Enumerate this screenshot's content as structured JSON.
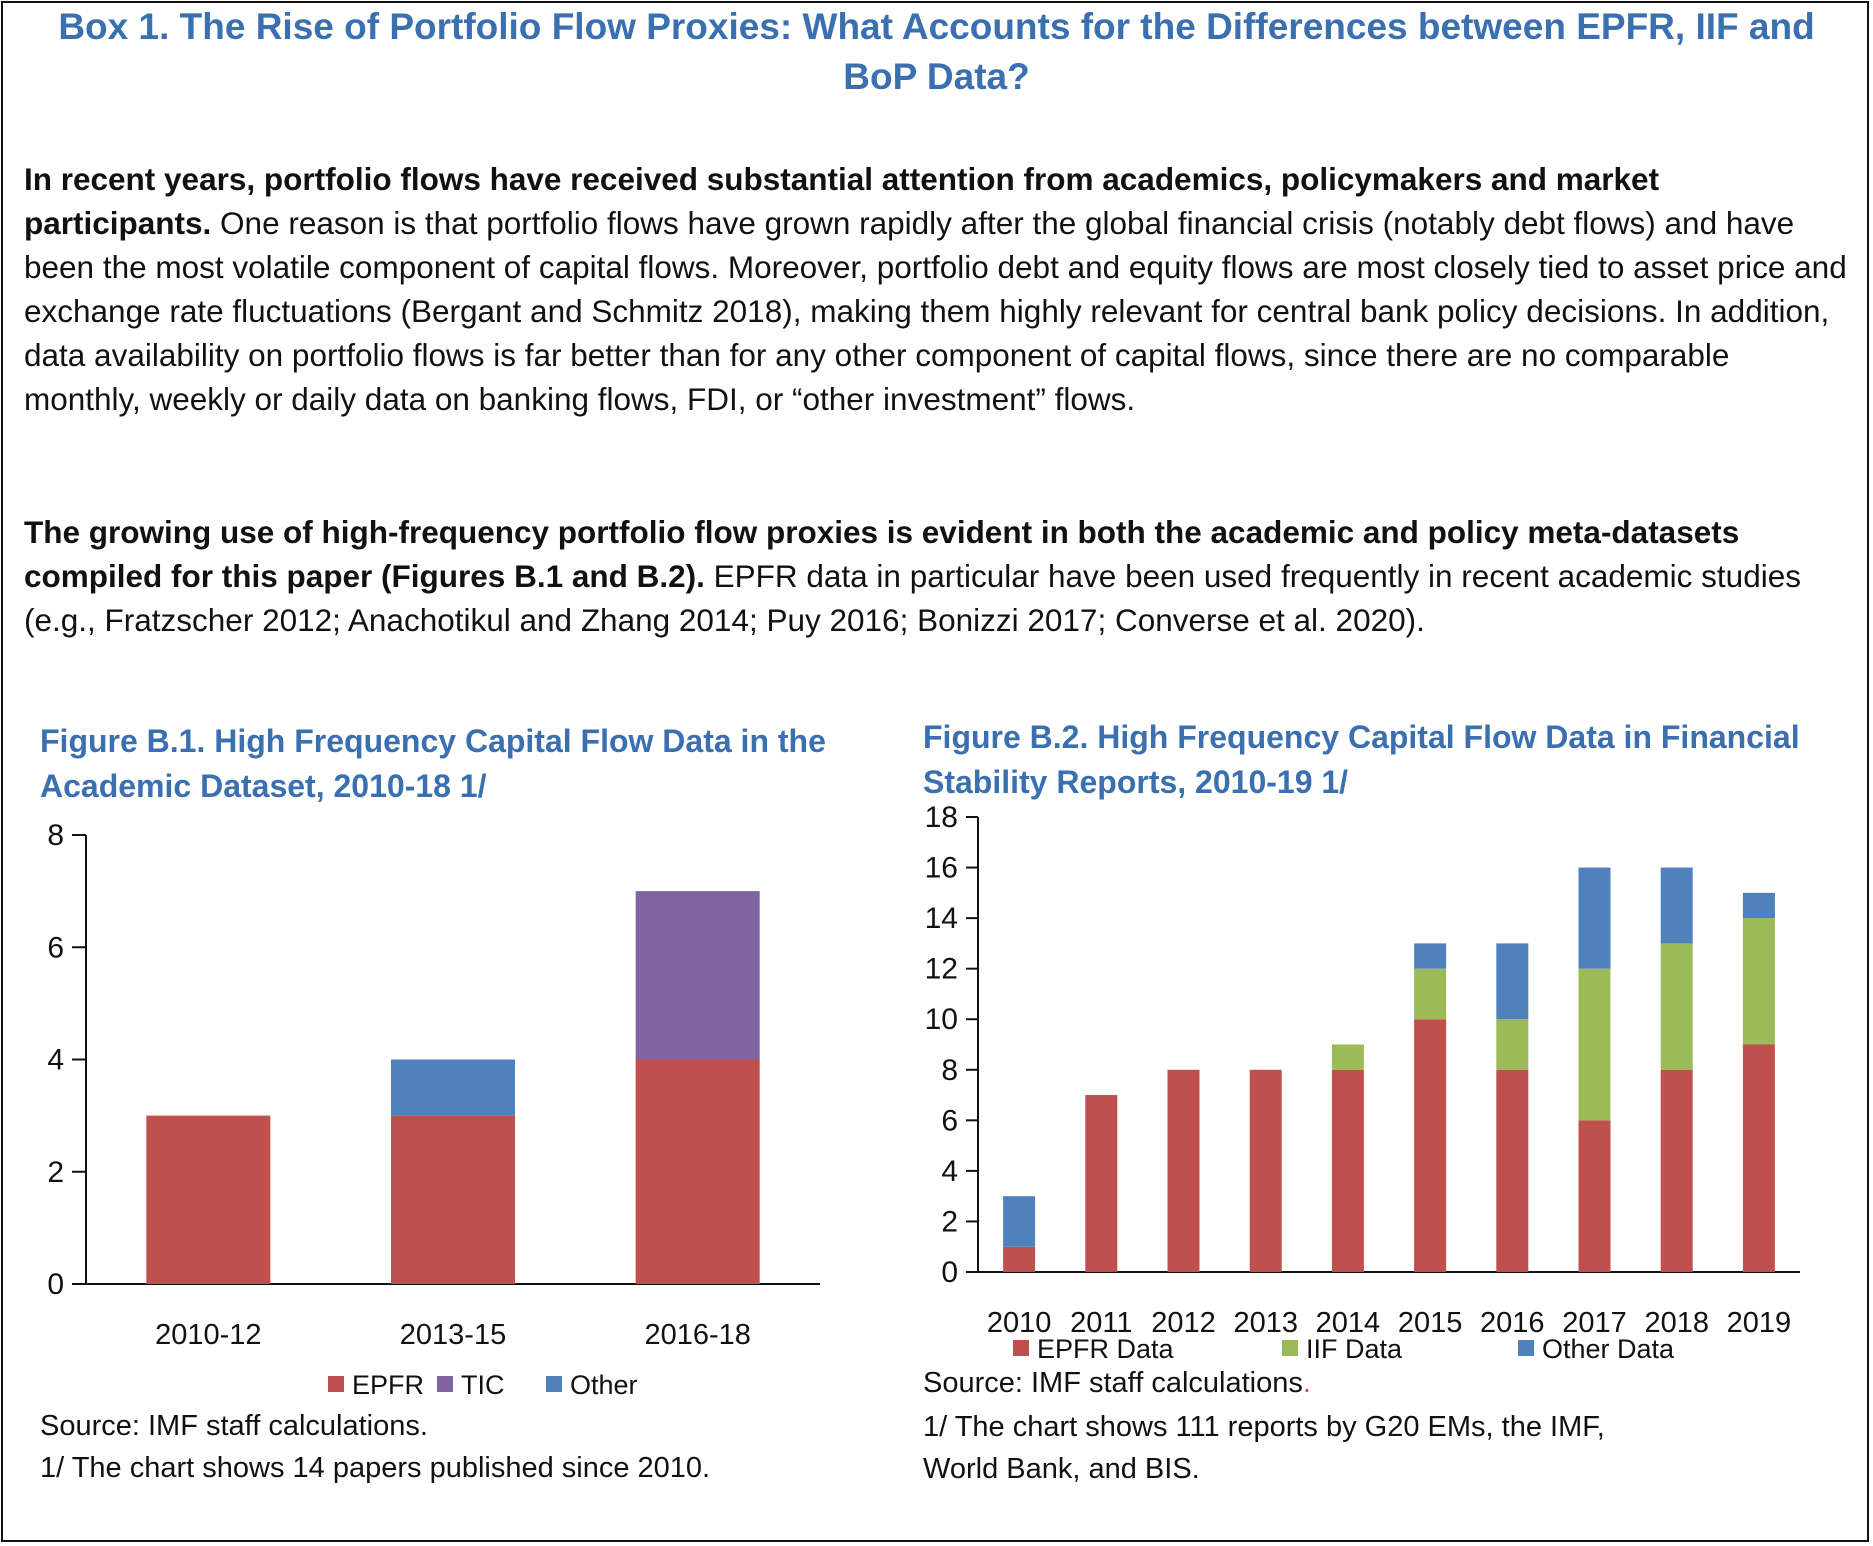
{
  "box_title": "Box 1. The Rise of Portfolio Flow Proxies: What Accounts for the Differences between EPFR, IIF and BoP Data?",
  "paragraphs": [
    {
      "bold": "In recent years, portfolio flows have received substantial attention from academics, policymakers and market participants.",
      "text": " One reason is that portfolio flows have grown rapidly after the global financial crisis (notably debt flows) and have been the most volatile component of capital flows. Moreover, portfolio debt and equity flows are most closely tied to asset price and exchange rate fluctuations (Bergant and Schmitz 2018), making them highly relevant for central bank policy decisions. In addition, data availability on portfolio flows is far better than for any other component of capital flows, since there are no comparable monthly, weekly or daily data on banking flows, FDI, or “other investment” flows."
    },
    {
      "bold": "The growing use of high-frequency portfolio flow proxies is evident in both the academic and policy meta-datasets compiled for this paper (Figures B.1 and B.2).",
      "text": " EPFR data in particular have been used frequently in recent academic studies (e.g., Fratzscher 2012; Anachotikul and Zhang 2014; Puy 2016; Bonizzi 2017; Converse et al. 2020)."
    }
  ],
  "figures": [
    {
      "title": "Figure B.1. High Frequency Capital Flow Data in the Academic Dataset, 2010-18 1/",
      "source": "Source: IMF staff calculations.",
      "note": "1/ The chart shows 14 papers published since 2010."
    },
    {
      "title": "Figure B.2. High Frequency Capital Flow Data in Financial Stability Reports, 2010-19 1/",
      "source": "Source: IMF staff calculations",
      "source_suffix": ".",
      "note_line1": "1/ The chart shows 111 reports by G20 EMs, the IMF,",
      "note_line2": "World Bank, and BIS."
    }
  ],
  "chart_data": [
    {
      "type": "bar",
      "stacked": true,
      "title": "Figure B.1. High Frequency Capital Flow Data in the Academic Dataset, 2010-18 1/",
      "categories": [
        "2010-12",
        "2013-15",
        "2016-18"
      ],
      "series": [
        {
          "name": "EPFR",
          "color": "#c0504d",
          "values": [
            3,
            3,
            4
          ]
        },
        {
          "name": "TIC",
          "color": "#8064a2",
          "values": [
            0,
            0,
            3
          ]
        },
        {
          "name": "Other",
          "color": "#4f81bd",
          "values": [
            0,
            1,
            0
          ]
        }
      ],
      "ylim": [
        0,
        8
      ],
      "yticks": [
        0,
        2,
        4,
        6,
        8
      ],
      "grid": false,
      "legend": "bottom"
    },
    {
      "type": "bar",
      "stacked": true,
      "title": "Figure B.2. High Frequency Capital Flow Data in Financial Stability Reports, 2010-19 1/",
      "categories": [
        "2010",
        "2011",
        "2012",
        "2013",
        "2014",
        "2015",
        "2016",
        "2017",
        "2018",
        "2019"
      ],
      "series": [
        {
          "name": "EPFR Data",
          "color": "#c0504d",
          "values": [
            1,
            7,
            8,
            8,
            8,
            10,
            8,
            6,
            8,
            9
          ]
        },
        {
          "name": "IIF Data",
          "color": "#9bbb59",
          "values": [
            0,
            0,
            0,
            0,
            1,
            2,
            2,
            6,
            5,
            5
          ]
        },
        {
          "name": "Other Data",
          "color": "#4f81bd",
          "values": [
            2,
            0,
            0,
            0,
            0,
            1,
            3,
            4,
            3,
            1
          ]
        }
      ],
      "ylim": [
        0,
        18
      ],
      "yticks": [
        0,
        2,
        4,
        6,
        8,
        10,
        12,
        14,
        16,
        18
      ],
      "grid": false,
      "legend": "bottom"
    }
  ]
}
